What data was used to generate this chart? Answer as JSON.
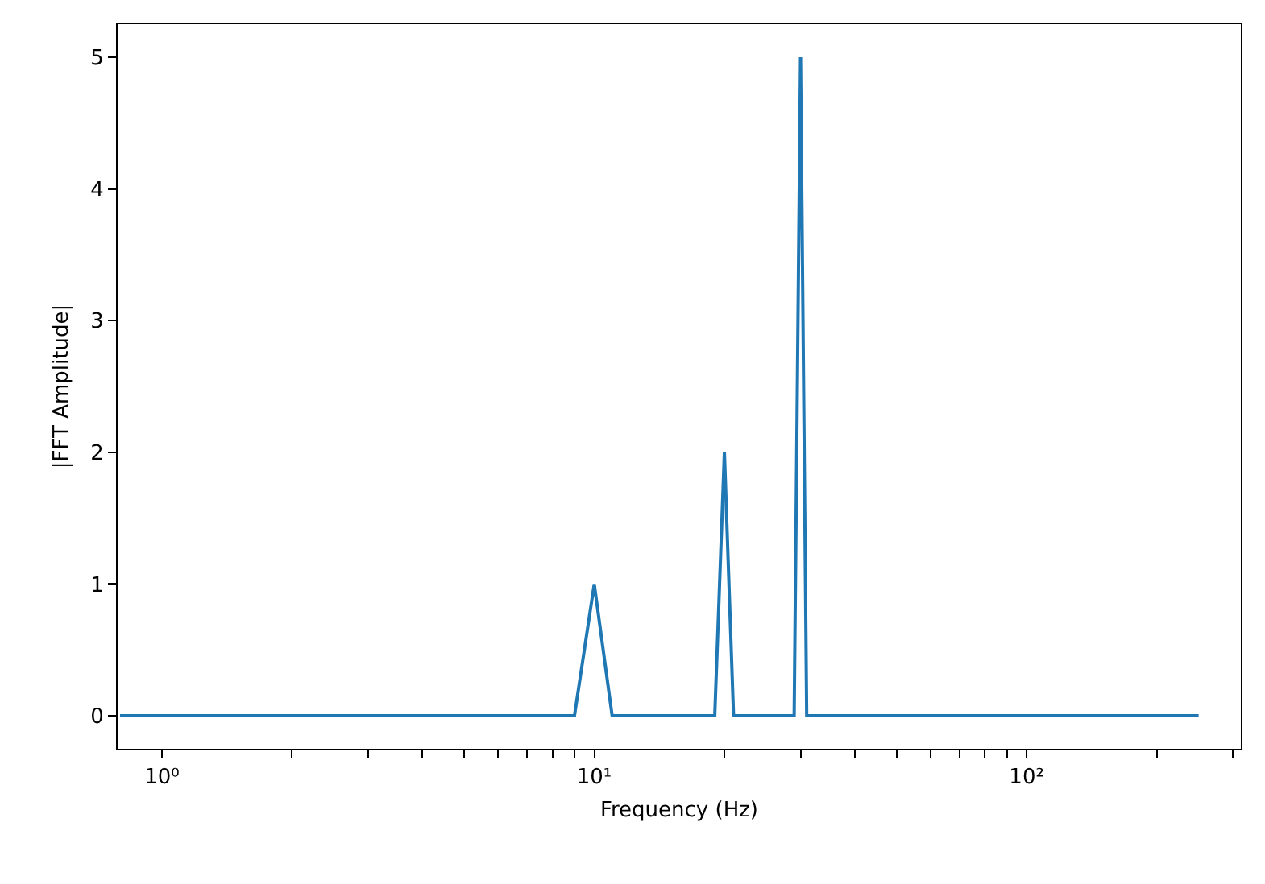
{
  "chart_data": {
    "type": "line",
    "xlabel": "Frequency (Hz)",
    "ylabel": "|FFT Amplitude|",
    "series": [
      {
        "color": "#1f77b4",
        "x": [
          0.8,
          9,
          10,
          11,
          19,
          20,
          21,
          29,
          30,
          31,
          250
        ],
        "values": [
          0,
          0,
          1,
          0,
          0,
          2,
          0,
          0,
          5,
          0,
          0
        ]
      }
    ],
    "log": "x",
    "xlim": [
      0.79,
      313
    ],
    "ylim": [
      -0.25,
      5.25
    ],
    "xticks": [
      {
        "value": 1,
        "label": "10⁰"
      },
      {
        "value": 2,
        "label": null
      },
      {
        "value": 3,
        "label": null
      },
      {
        "value": 4,
        "label": null
      },
      {
        "value": 5,
        "label": null
      },
      {
        "value": 6,
        "label": null
      },
      {
        "value": 7,
        "label": null
      },
      {
        "value": 8,
        "label": null
      },
      {
        "value": 9,
        "label": null
      },
      {
        "value": 10,
        "label": "10¹"
      },
      {
        "value": 20,
        "label": null
      },
      {
        "value": 30,
        "label": null
      },
      {
        "value": 40,
        "label": null
      },
      {
        "value": 50,
        "label": null
      },
      {
        "value": 60,
        "label": null
      },
      {
        "value": 70,
        "label": null
      },
      {
        "value": 80,
        "label": null
      },
      {
        "value": 90,
        "label": null
      },
      {
        "value": 100,
        "label": "10²"
      },
      {
        "value": 200,
        "label": null
      },
      {
        "value": 300,
        "label": null
      }
    ],
    "yticks": [
      0,
      1,
      2,
      3,
      4,
      5
    ],
    "grid": false,
    "marker": "none",
    "line_style": "solid"
  }
}
